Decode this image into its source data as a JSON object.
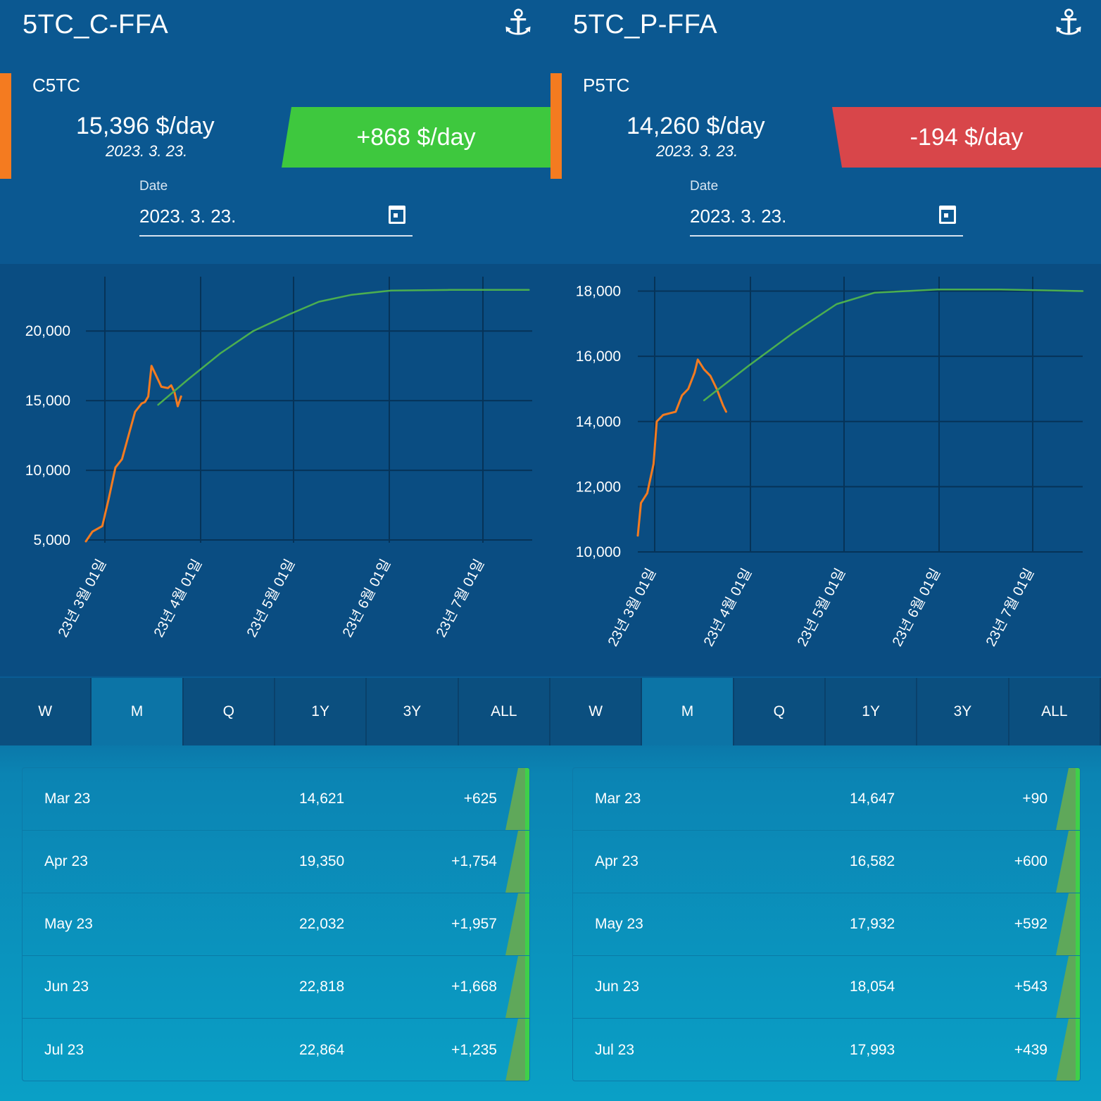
{
  "panels": [
    {
      "title": "5TC_C-FFA",
      "anchor_icon": "⚓",
      "index_name": "C5TC",
      "price": "15,396 $/day",
      "price_date": "2023. 3. 23.",
      "change": "+868 $/day",
      "change_direction": "up",
      "date_label": "Date",
      "date_value": "2023. 3. 23.",
      "tabs": [
        "W",
        "M",
        "Q",
        "1Y",
        "3Y",
        "ALL"
      ],
      "active_tab": "M",
      "rows": [
        {
          "month": "Mar 23",
          "value": "14,621",
          "change": "+625"
        },
        {
          "month": "Apr 23",
          "value": "19,350",
          "change": "+1,754"
        },
        {
          "month": "May 23",
          "value": "22,032",
          "change": "+1,957"
        },
        {
          "month": "Jun 23",
          "value": "22,818",
          "change": "+1,668"
        },
        {
          "month": "Jul 23",
          "value": "22,864",
          "change": "+1,235"
        }
      ]
    },
    {
      "title": "5TC_P-FFA",
      "anchor_icon": "⚓",
      "index_name": "P5TC",
      "price": "14,260 $/day",
      "price_date": "2023. 3. 23.",
      "change": "-194 $/day",
      "change_direction": "down",
      "date_label": "Date",
      "date_value": "2023. 3. 23.",
      "tabs": [
        "W",
        "M",
        "Q",
        "1Y",
        "3Y",
        "ALL"
      ],
      "active_tab": "M",
      "rows": [
        {
          "month": "Mar 23",
          "value": "14,647",
          "change": "+90"
        },
        {
          "month": "Apr 23",
          "value": "16,582",
          "change": "+600"
        },
        {
          "month": "May 23",
          "value": "17,932",
          "change": "+592"
        },
        {
          "month": "Jun 23",
          "value": "18,054",
          "change": "+543"
        },
        {
          "month": "Jul 23",
          "value": "17,993",
          "change": "+439"
        }
      ]
    }
  ],
  "chart_data": [
    {
      "type": "line",
      "x_tick_labels": [
        "23년 3월 01일",
        "23년 4월 01일",
        "23년 5월 01일",
        "23년 6월 01일",
        "23년 7월 01일"
      ],
      "y_tick_labels": [
        "5,000",
        "10,000",
        "15,000",
        "20,000"
      ],
      "y_ticks": [
        5000,
        10000,
        15000,
        20000
      ],
      "ylim": [
        4800,
        23800
      ],
      "x_days_range": [
        -1,
        135
      ],
      "grid": true,
      "series": [
        {
          "color": "#f47b20",
          "points": [
            [
              -1,
              4900
            ],
            [
              1,
              5600
            ],
            [
              4,
              6000
            ],
            [
              6,
              8000
            ],
            [
              8,
              10200
            ],
            [
              10,
              10800
            ],
            [
              12,
              12500
            ],
            [
              14,
              14200
            ],
            [
              16,
              14800
            ],
            [
              17,
              14900
            ],
            [
              18,
              15300
            ],
            [
              19,
              17500
            ],
            [
              21,
              16500
            ],
            [
              22,
              16000
            ],
            [
              24,
              15900
            ],
            [
              25,
              16100
            ],
            [
              26,
              15600
            ],
            [
              27,
              14600
            ],
            [
              28,
              15300
            ]
          ]
        },
        {
          "color": "#4caf50",
          "points": [
            [
              21,
              14700
            ],
            [
              30,
              16500
            ],
            [
              40,
              18400
            ],
            [
              50,
              20000
            ],
            [
              61,
              21200
            ],
            [
              70,
              22100
            ],
            [
              80,
              22600
            ],
            [
              92,
              22900
            ],
            [
              110,
              22950
            ],
            [
              134,
              22950
            ]
          ]
        }
      ]
    },
    {
      "type": "line",
      "x_tick_labels": [
        "23년 3월 01일",
        "23년 4월 01일",
        "23년 5월 01일",
        "23년 6월 01일",
        "23년 7월 01일"
      ],
      "y_tick_labels": [
        "10,000",
        "12,000",
        "14,000",
        "16,000",
        "18,000"
      ],
      "y_ticks": [
        10000,
        12000,
        14000,
        16000,
        18000
      ],
      "ylim": [
        10000,
        18400
      ],
      "x_days_range": [
        -5,
        136
      ],
      "grid": true,
      "series": [
        {
          "color": "#f47b20",
          "points": [
            [
              -5,
              10500
            ],
            [
              -4,
              11500
            ],
            [
              -2,
              11800
            ],
            [
              0,
              12700
            ],
            [
              1,
              14000
            ],
            [
              3,
              14200
            ],
            [
              5,
              14250
            ],
            [
              7,
              14300
            ],
            [
              9,
              14800
            ],
            [
              11,
              15000
            ],
            [
              13,
              15500
            ],
            [
              14,
              15900
            ],
            [
              16,
              15600
            ],
            [
              18,
              15400
            ],
            [
              20,
              15000
            ],
            [
              22,
              14500
            ],
            [
              23,
              14300
            ]
          ]
        },
        {
          "color": "#4caf50",
          "points": [
            [
              16,
              14650
            ],
            [
              30,
              15700
            ],
            [
              44,
              16700
            ],
            [
              58,
              17600
            ],
            [
              70,
              17950
            ],
            [
              90,
              18050
            ],
            [
              110,
              18050
            ],
            [
              136,
              18000
            ]
          ]
        }
      ]
    }
  ]
}
